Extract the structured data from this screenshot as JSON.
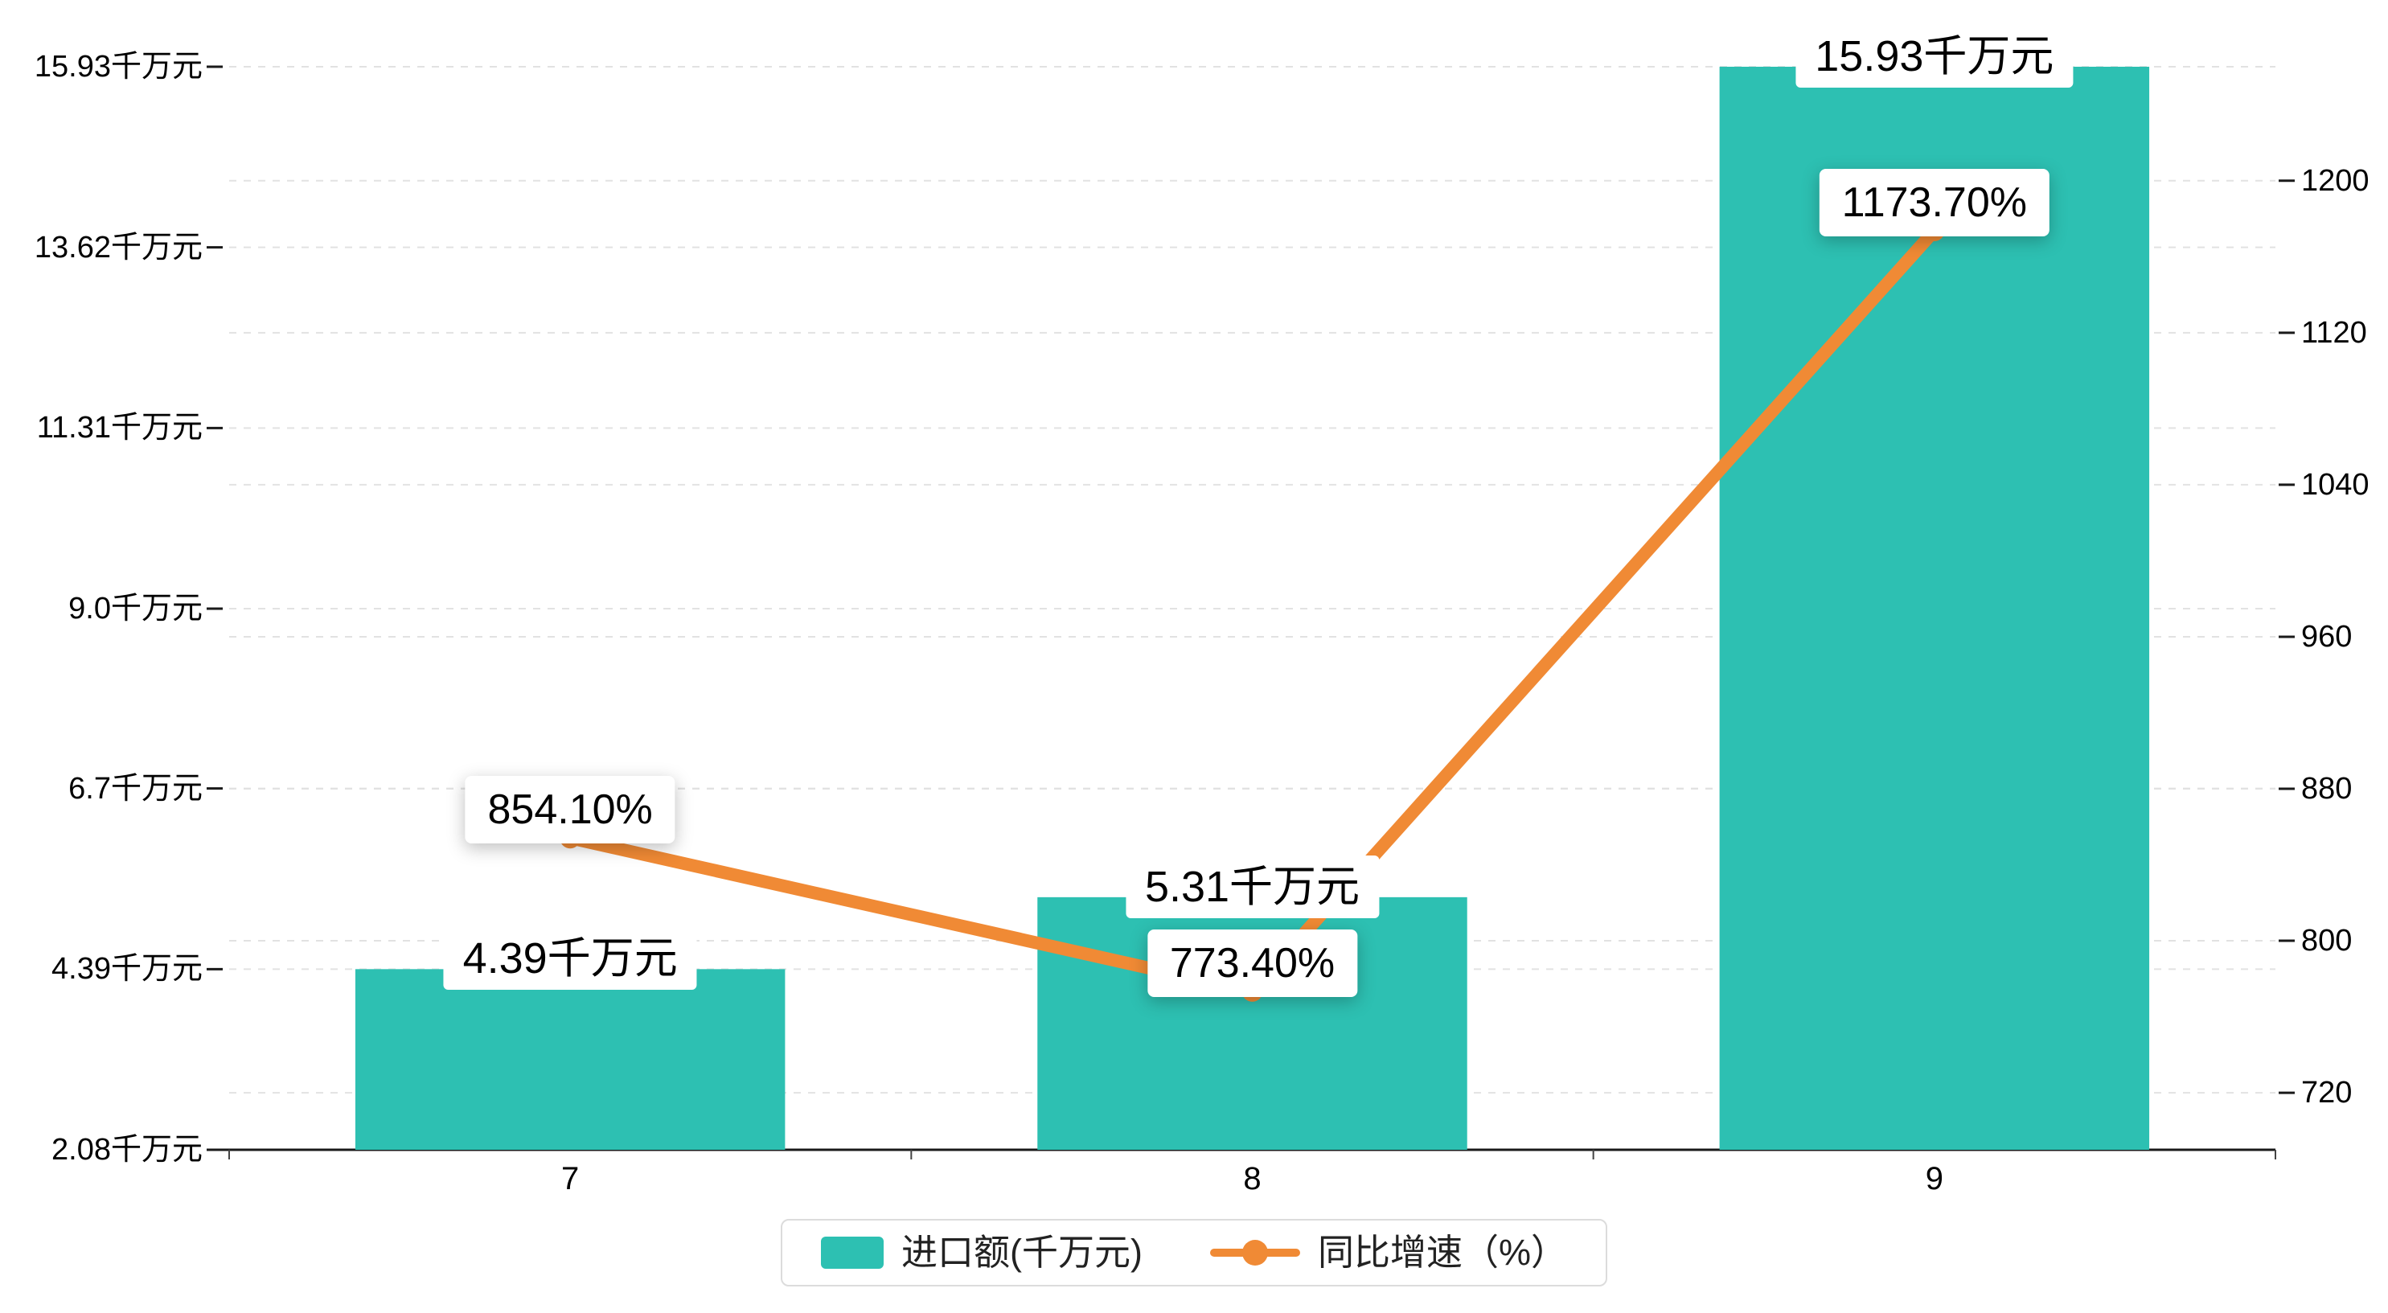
{
  "chart_data": {
    "type": "bar",
    "subtype": "bar+line-dual-axis",
    "categories": [
      "7",
      "8",
      "9"
    ],
    "series": [
      {
        "name": "进口额(千万元)",
        "type": "bar",
        "axis": "left",
        "values": [
          4.39,
          5.31,
          15.93
        ],
        "labels": [
          "4.39千万元",
          "5.31千万元",
          "15.93千万元"
        ],
        "color": "#2dc0b2"
      },
      {
        "name": "同比增速（%）",
        "type": "line",
        "axis": "right",
        "values": [
          854.1,
          773.4,
          1173.7
        ],
        "labels": [
          "854.10%",
          "773.40%",
          "1173.70%"
        ],
        "color": "#f08a35"
      }
    ],
    "left_axis": {
      "min": 2.08,
      "max": 15.93,
      "ticks": [
        {
          "value": 2.08,
          "label": "2.08千万元"
        },
        {
          "value": 4.39,
          "label": "4.39千万元"
        },
        {
          "value": 6.7,
          "label": "6.7千万元"
        },
        {
          "value": 9.0,
          "label": "9.0千万元"
        },
        {
          "value": 11.31,
          "label": "11.31千万元"
        },
        {
          "value": 13.62,
          "label": "13.62千万元"
        },
        {
          "value": 15.93,
          "label": "15.93千万元"
        }
      ]
    },
    "right_axis": {
      "min": 690,
      "max": 1260,
      "ticks": [
        {
          "value": 720,
          "label": "720"
        },
        {
          "value": 800,
          "label": "800"
        },
        {
          "value": 880,
          "label": "880"
        },
        {
          "value": 960,
          "label": "960"
        },
        {
          "value": 1040,
          "label": "1040"
        },
        {
          "value": 1120,
          "label": "1120"
        },
        {
          "value": 1200,
          "label": "1200"
        }
      ]
    },
    "grid": "dashed",
    "legend": {
      "position": "bottom-center",
      "items": [
        {
          "label": "进口额(千万元)",
          "swatch": "bar"
        },
        {
          "label": "同比增速（%）",
          "swatch": "line"
        }
      ]
    }
  }
}
